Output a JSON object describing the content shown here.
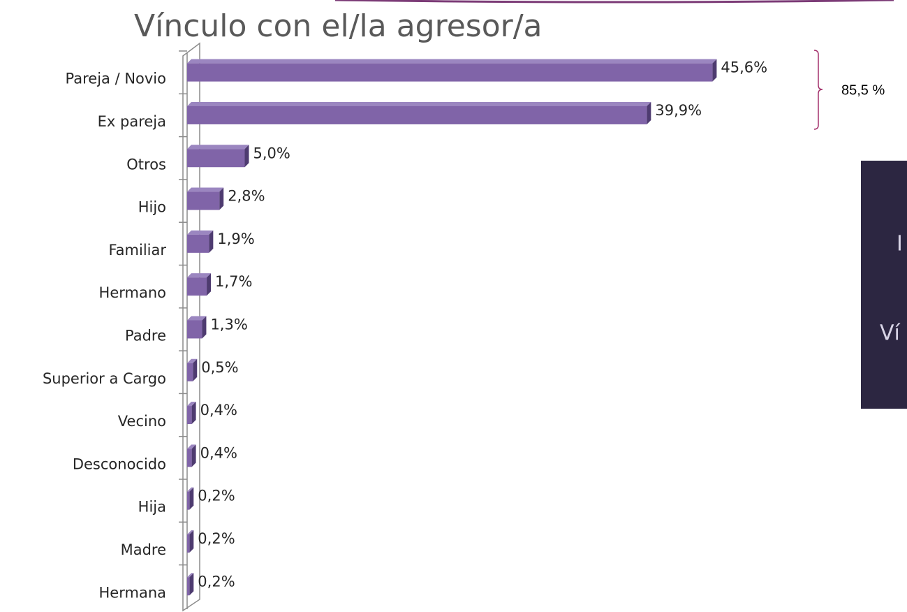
{
  "chart_data": {
    "type": "bar",
    "orientation": "horizontal",
    "title": "Vínculo con el/la agresor/a",
    "categories": [
      "Pareja / Novio",
      "Ex pareja",
      "Otros",
      "Hijo",
      "Familiar",
      "Hermano",
      "Padre",
      "Superior a Cargo",
      "Vecino",
      "Desconocido",
      "Hija",
      "Madre",
      "Hermana"
    ],
    "values": [
      45.6,
      39.9,
      5.0,
      2.8,
      1.9,
      1.7,
      1.3,
      0.5,
      0.4,
      0.4,
      0.2,
      0.2,
      0.2
    ],
    "value_labels": [
      "45,6%",
      "39,9%",
      "5,0%",
      "2,8%",
      "1,9%",
      "1,7%",
      "1,3%",
      "0,5%",
      "0,4%",
      "0,4%",
      "0,2%",
      "0,2%",
      "0,2%"
    ],
    "color": "#8064a8",
    "xlim": [
      0,
      50
    ],
    "annotation": "85,5 %",
    "panel_text": [
      "I",
      "Ví"
    ]
  }
}
